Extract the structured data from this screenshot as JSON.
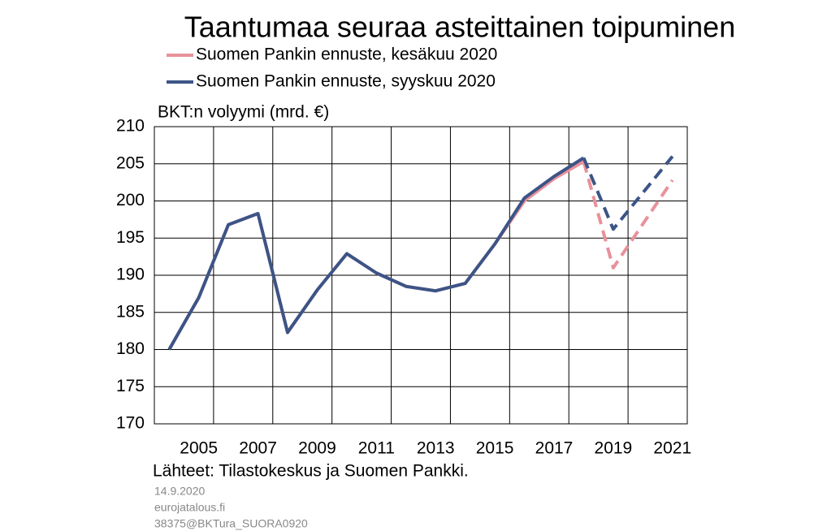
{
  "chart_data": {
    "type": "line",
    "title": "Taantumaa seuraa asteittainen toipuminen",
    "y_label": "BKT:n volyymi (mrd. €)",
    "categories": [
      null,
      "2005",
      null,
      "2007",
      null,
      "2009",
      null,
      "2011",
      null,
      "2013",
      null,
      "2015",
      null,
      "2017",
      null,
      "2019",
      null,
      "2021"
    ],
    "series": [
      {
        "name": "Suomen Pankin ennuste, kesäkuu 2020",
        "color": "#e8919a",
        "dashed_from_index": 14,
        "values": [
          180,
          187,
          196.8,
          198.3,
          182.3,
          188,
          192.9,
          190.3,
          188.5,
          187.9,
          188.9,
          194.2,
          200.0,
          203.0,
          205.3,
          191.0,
          196.9,
          202.8
        ]
      },
      {
        "name": "Suomen Pankin ennuste, syyskuu 2020",
        "color": "#3c5487",
        "dashed_from_index": 14,
        "values": [
          180,
          187,
          196.8,
          198.3,
          182.3,
          188,
          192.9,
          190.3,
          188.5,
          187.9,
          188.9,
          194.2,
          200.4,
          203.3,
          205.8,
          196.2,
          201.1,
          206.0
        ]
      }
    ],
    "ylim": [
      170,
      210
    ],
    "yticks": [
      170,
      175,
      180,
      185,
      190,
      195,
      200,
      205,
      210
    ],
    "grid": true,
    "source": "Lähteet:  Tilastokeskus  ja  Suomen  Pankki.",
    "notes": [
      "14.9.2020",
      "eurojatalous.fi",
      "38375@BKTura_SUORA0920"
    ]
  }
}
